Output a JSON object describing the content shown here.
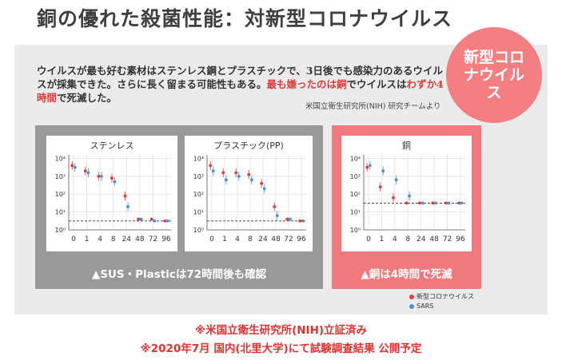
{
  "title": "銅の優れた殺菌性能：対新型コロナウイルス",
  "badge": "新型コロナウイルス",
  "intro": {
    "part1": "ウイルスが最も好む素材はステンレス鋼とプラスチックで、3日後でも感染力のあるウイルスが採集できた。さらに長く留まる可能性もある。",
    "part2": "最も嫌ったのは銅",
    "part3": "でウイルスは",
    "part4": "わずか4時間",
    "part5": "で死滅した。"
  },
  "credit": "米国立衛生研究所(NIH) 研究チームより",
  "captions": {
    "gray": "▲SUS・Plasticは72時間後も確認",
    "pink": "▲銅は4時間で死滅"
  },
  "legend": {
    "covid": "新型コロナウイルス",
    "sars": "SARS"
  },
  "notes": [
    "※米国立衛生研究所(NIH)立証済み",
    "※2020年7月 国内(北里大学)にて試験調査結果 公開予定"
  ],
  "colors": {
    "covid": "#e23a3a",
    "sars": "#4a90d9",
    "gray_card": "#999999",
    "pink_card": "#f0797d",
    "badge": "#f37f83"
  },
  "chart_data": [
    {
      "type": "scatter",
      "title": "ステンレス",
      "categories": [
        "0",
        "1",
        "4",
        "8",
        "24",
        "48",
        "72",
        "96"
      ],
      "y_ticks": [
        "10⁰",
        "10¹",
        "10²",
        "10³",
        "10⁴"
      ],
      "ylim_log10": [
        0,
        4.2
      ],
      "series": [
        {
          "name": "新型コロナウイルス",
          "values_log10": [
            3.6,
            3.3,
            3.0,
            2.9,
            1.9,
            0.6,
            0.6,
            0.5
          ]
        },
        {
          "name": "SARS",
          "values_log10": [
            3.5,
            3.2,
            3.0,
            2.7,
            1.3,
            0.6,
            0.5,
            0.5
          ]
        }
      ]
    },
    {
      "type": "scatter",
      "title": "プラスチック(PP)",
      "categories": [
        "0",
        "1",
        "4",
        "8",
        "24",
        "48",
        "72",
        "96"
      ],
      "y_ticks": [
        "10⁰",
        "10¹",
        "10²",
        "10³",
        "10⁴"
      ],
      "ylim_log10": [
        0,
        4.2
      ],
      "series": [
        {
          "name": "新型コロナウイルス",
          "values_log10": [
            3.6,
            3.2,
            3.2,
            3.1,
            2.6,
            1.3,
            0.6,
            0.5
          ]
        },
        {
          "name": "SARS",
          "values_log10": [
            3.3,
            2.8,
            3.0,
            2.8,
            2.3,
            0.8,
            0.6,
            0.5
          ]
        }
      ]
    },
    {
      "type": "scatter",
      "title": "銅",
      "categories": [
        "0",
        "1",
        "4",
        "8",
        "24",
        "48",
        "72",
        "96"
      ],
      "y_ticks": [
        "10⁰",
        "10¹",
        "10²",
        "10³",
        "10⁴"
      ],
      "ylim_log10": [
        0,
        4.2
      ],
      "series": [
        {
          "name": "新型コロナウイルス",
          "values_log10": [
            3.5,
            2.4,
            1.8,
            1.5,
            1.5,
            1.5,
            1.5,
            1.5
          ]
        },
        {
          "name": "SARS",
          "values_log10": [
            3.6,
            3.3,
            2.8,
            1.9,
            1.5,
            1.5,
            1.5,
            1.5
          ]
        }
      ]
    }
  ]
}
